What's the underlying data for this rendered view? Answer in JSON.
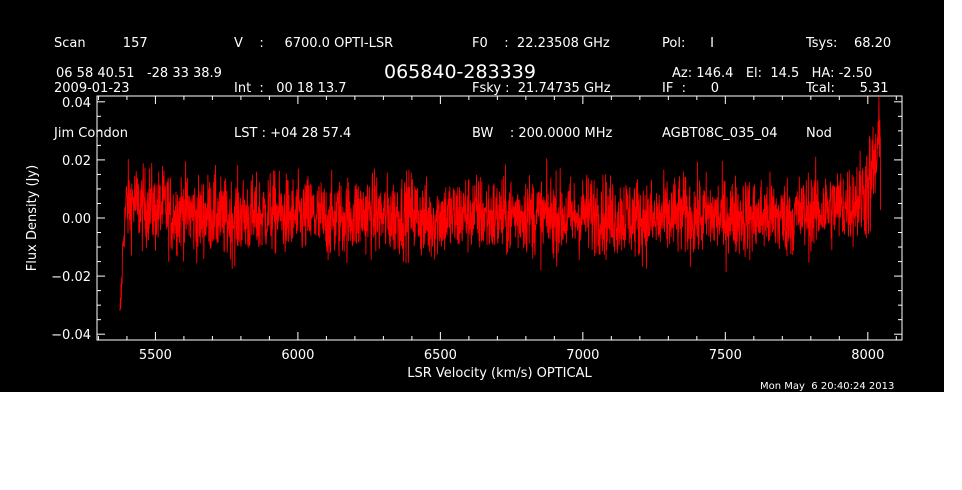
{
  "header": {
    "col1": [
      "Scan         157",
      "2009-01-23",
      "Jim Condon"
    ],
    "col2": [
      "V    :     6700.0 OPTI-LSR",
      "Int  :   00 18 13.7",
      "LST : +04 28 57.4"
    ],
    "col3": [
      "F0    :  22.23508 GHz",
      "Fsky :  21.74735 GHz",
      "BW    : 200.0000 MHz"
    ],
    "col4": [
      "Pol:      I",
      "IF  :      0",
      "AGBT08C_035_04"
    ],
    "col5": [
      "Tsys:    68.20",
      "Tcal:      5.31",
      "Nod"
    ],
    "coords": "06 58 40.51   -28 33 38.9",
    "source": "065840-283339",
    "pointing": "Az: 146.4   El:  14.5   HA: -2.50",
    "timestamp": "Mon May  6 20:40:24 2013"
  },
  "colors": {
    "background": "#000000",
    "axes": "#ffffff",
    "trace": "#ff0000"
  },
  "chart_data": {
    "type": "line",
    "title": "065840-283339",
    "xlabel": "LSR Velocity (km/s) OPTICAL",
    "ylabel": "Flux Density (Jy)",
    "xlim": [
      5295,
      8120
    ],
    "ylim": [
      -0.042,
      0.042
    ],
    "xticks": [
      5500,
      6000,
      6500,
      7000,
      7500,
      8000
    ],
    "yticks": [
      -0.04,
      -0.02,
      0.0,
      0.02,
      0.04
    ],
    "xtick_labels": [
      "5500",
      "6000",
      "6500",
      "7000",
      "7500",
      "8000"
    ],
    "ytick_labels": [
      "−0.04",
      "−0.02",
      "0.00",
      "0.02",
      "0.04"
    ],
    "series": [
      {
        "x": [
          5375,
          5378,
          5382,
          5386,
          5390,
          5395,
          5400,
          5410,
          5420,
          5440,
          5460,
          5480,
          5500,
          5530,
          5560,
          5600,
          5650,
          5700,
          5750,
          5800,
          5850,
          5900,
          5950,
          6000,
          6050,
          6100,
          6150,
          6200,
          6250,
          6300,
          6350,
          6400,
          6450,
          6460,
          6500,
          6550,
          6600,
          6650,
          6700,
          6750,
          6800,
          6850,
          6900,
          6950,
          7000,
          7050,
          7100,
          7150,
          7200,
          7250,
          7300,
          7350,
          7400,
          7450,
          7500,
          7550,
          7600,
          7650,
          7700,
          7750,
          7800,
          7850,
          7900,
          7950,
          7980,
          8000,
          8010,
          8020,
          8030,
          8040,
          8045
        ],
        "y": [
          -0.036,
          -0.03,
          -0.022,
          -0.01,
          -0.004,
          0.002,
          0.005,
          0.004,
          0.006,
          0.004,
          0.003,
          0.005,
          0.002,
          0.004,
          0.001,
          0.003,
          0.0,
          0.002,
          -0.001,
          0.001,
          0.0,
          0.002,
          0.001,
          0.0,
          0.001,
          -0.001,
          0.0,
          0.001,
          0.002,
          0.0,
          0.001,
          0.002,
          -0.001,
          -0.002,
          0.001,
          0.0,
          0.002,
          0.001,
          0.0,
          0.001,
          0.002,
          0.0,
          0.001,
          0.0,
          0.001,
          0.002,
          0.0,
          0.001,
          0.0,
          -0.001,
          0.0,
          0.001,
          0.0,
          0.001,
          0.0,
          0.001,
          0.0,
          0.001,
          0.0,
          0.001,
          0.002,
          0.003,
          0.004,
          0.005,
          0.008,
          0.01,
          0.012,
          0.016,
          0.02,
          0.026,
          0.022
        ]
      }
    ]
  }
}
